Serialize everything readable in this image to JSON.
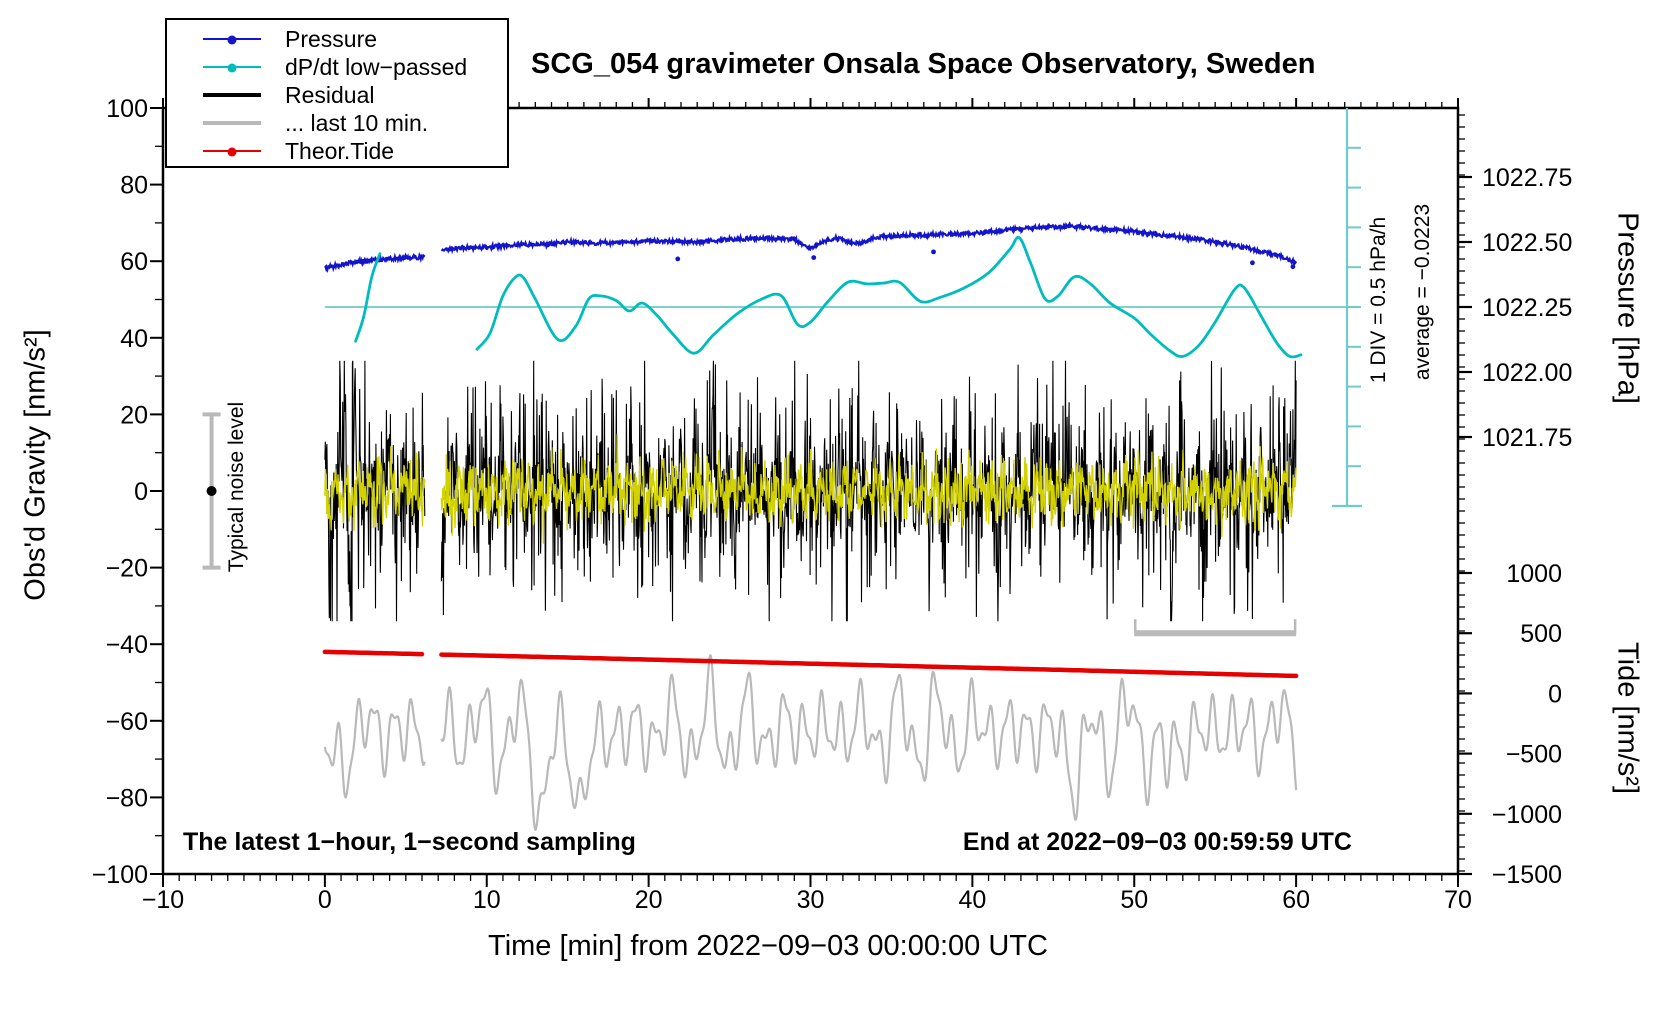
{
  "title": "SCG_054 gravimeter Onsala Space Observatory, Sweden",
  "legend": {
    "items": [
      {
        "label": "Pressure",
        "color": "#1414cc",
        "line_width": 2,
        "marker": true
      },
      {
        "label": "dP/dt low−passed",
        "color": "#00bdbd",
        "line_width": 2,
        "marker": true
      },
      {
        "label": "Residual",
        "color": "#000000",
        "line_width": 4,
        "marker": false
      },
      {
        "label": "... last 10 min.",
        "color": "#b9b9b9",
        "line_width": 4,
        "marker": false
      },
      {
        "label": "Theor.Tide",
        "color": "#e60000",
        "line_width": 2,
        "marker": true
      }
    ]
  },
  "annotations": {
    "sampling_note": "The latest 1−hour, 1−second sampling",
    "end_note": "End at 2022−09−03 00:59:59 UTC",
    "div_note": "1 DIV = 0.5 hPa/h",
    "average_note": "average = −0.0223",
    "noise_label": "Typical noise level"
  },
  "axes": {
    "x": {
      "title": "Time [min] from 2022−09−03 00:00:00 UTC",
      "min": -10,
      "max": 70,
      "major_step": 10,
      "minor_step": 1,
      "tick_values": [
        -10,
        0,
        10,
        20,
        30,
        40,
        50,
        60,
        70
      ],
      "tick_labels": [
        "−10",
        "0",
        "10",
        "20",
        "30",
        "40",
        "50",
        "60",
        "70"
      ]
    },
    "y_left": {
      "title": "Obs'd Gravity [nm/s²]",
      "min": -100,
      "max": 100,
      "major_step": 20,
      "minor_step": 10,
      "tick_values": [
        100,
        80,
        60,
        40,
        20,
        0,
        -20,
        -40,
        -60,
        -80,
        -100
      ],
      "tick_labels": [
        "100",
        "80",
        "60",
        "40",
        "20",
        "0",
        "−20",
        "−40",
        "−60",
        "−80",
        "−100"
      ]
    },
    "y_right_pressure": {
      "title": "Pressure [hPa]",
      "tick_values": [
        1022.75,
        1022.5,
        1022.25,
        1022.0,
        1021.75
      ],
      "tick_labels": [
        "1022.75",
        "1022.50",
        "1022.25",
        "1022.00",
        "1021.75"
      ]
    },
    "y_right_tide": {
      "title": "Tide [nm/s²]",
      "tick_values": [
        1000,
        500,
        0,
        -500,
        -1000,
        -1500
      ],
      "tick_labels": [
        "1000",
        "500",
        "0",
        "−500",
        "−1000",
        "−1500"
      ]
    }
  },
  "colors": {
    "pressure": "#1414cc",
    "dpdt": "#00bdbd",
    "dpdt_ruler": "#6fcaca",
    "residual": "#000000",
    "residual_overlay": "#d2d200",
    "last10": "#b9b9b9",
    "tide": "#e60000",
    "noise_bar": "#b9b9b9"
  },
  "chart_data": {
    "type": "line",
    "x_unit": "minutes",
    "time_span": [
      0,
      60
    ],
    "data_gap": [
      6.2,
      7.2
    ],
    "noise_level_marker": {
      "t": -7,
      "center_gravity": 0,
      "half_range": 20
    },
    "dpdt_ruler": {
      "divisions": 10,
      "div_value_hPa_per_h": 0.5
    },
    "series": [
      {
        "name": "Pressure",
        "axis": "pressure_hPa",
        "color": "#1414cc",
        "noise_hPa": 0.008,
        "keypoints": [
          [
            0,
            1022.4
          ],
          [
            1,
            1022.413
          ],
          [
            2,
            1022.424
          ],
          [
            3,
            1022.43
          ],
          [
            4,
            1022.436
          ],
          [
            5,
            1022.44
          ],
          [
            6.2,
            1022.442
          ],
          [
            7.2,
            1022.47
          ],
          [
            8,
            1022.476
          ],
          [
            10,
            1022.48
          ],
          [
            12,
            1022.49
          ],
          [
            14,
            1022.492
          ],
          [
            15,
            1022.5
          ],
          [
            17,
            1022.496
          ],
          [
            19,
            1022.5
          ],
          [
            21,
            1022.505
          ],
          [
            23,
            1022.5
          ],
          [
            25,
            1022.51
          ],
          [
            27,
            1022.515
          ],
          [
            29,
            1022.51
          ],
          [
            30,
            1022.472
          ],
          [
            30.6,
            1022.5
          ],
          [
            31.5,
            1022.515
          ],
          [
            33,
            1022.492
          ],
          [
            34,
            1022.52
          ],
          [
            36,
            1022.525
          ],
          [
            38,
            1022.53
          ],
          [
            40,
            1022.532
          ],
          [
            42,
            1022.545
          ],
          [
            44,
            1022.556
          ],
          [
            46,
            1022.56
          ],
          [
            47,
            1022.556
          ],
          [
            48,
            1022.55
          ],
          [
            50,
            1022.54
          ],
          [
            52,
            1022.525
          ],
          [
            54,
            1022.51
          ],
          [
            55,
            1022.5
          ],
          [
            56,
            1022.49
          ],
          [
            57,
            1022.476
          ],
          [
            58,
            1022.46
          ],
          [
            59,
            1022.448
          ],
          [
            59.5,
            1022.432
          ],
          [
            60,
            1022.42
          ]
        ],
        "outlier_points": [
          [
            21.8,
            1022.435
          ],
          [
            30.2,
            1022.44
          ],
          [
            37.6,
            1022.462
          ],
          [
            57.3,
            1022.42
          ],
          [
            59.8,
            1022.405
          ]
        ]
      },
      {
        "name": "dP/dt low−passed",
        "axis": "hPa_per_hour",
        "color": "#00bdbd",
        "average": -0.0223,
        "div_value": 0.5,
        "segments": [
          [
            [
              1.9,
              -0.43
            ],
            [
              2.4,
              -0.12
            ],
            [
              2.9,
              0.38
            ],
            [
              3.4,
              0.67
            ]
          ],
          [
            [
              9.4,
              -0.53
            ],
            [
              10.2,
              -0.33
            ],
            [
              11,
              0.14
            ],
            [
              11.8,
              0.38
            ],
            [
              12.3,
              0.36
            ],
            [
              13,
              0.1
            ],
            [
              14.4,
              -0.41
            ],
            [
              15.5,
              -0.24
            ],
            [
              16.3,
              0.1
            ],
            [
              17,
              0.14
            ],
            [
              18,
              0.08
            ],
            [
              18.8,
              -0.05
            ],
            [
              19.6,
              0.05
            ],
            [
              20.5,
              -0.1
            ],
            [
              21.5,
              -0.34
            ],
            [
              22.8,
              -0.58
            ],
            [
              24,
              -0.35
            ],
            [
              25.5,
              -0.08
            ],
            [
              27,
              0.1
            ],
            [
              28.2,
              0.14
            ],
            [
              29.2,
              -0.22
            ],
            [
              30,
              -0.19
            ],
            [
              31,
              0.05
            ],
            [
              32.3,
              0.31
            ],
            [
              33.5,
              0.29
            ],
            [
              34.5,
              0.3
            ],
            [
              35.5,
              0.31
            ],
            [
              36.8,
              0.07
            ],
            [
              38,
              0.12
            ],
            [
              39.5,
              0.24
            ],
            [
              41,
              0.43
            ],
            [
              42.3,
              0.72
            ],
            [
              42.9,
              0.87
            ],
            [
              43.6,
              0.55
            ],
            [
              44.5,
              0.1
            ],
            [
              45.3,
              0.14
            ],
            [
              46.3,
              0.38
            ],
            [
              47.3,
              0.29
            ],
            [
              48.5,
              0.05
            ],
            [
              50,
              -0.14
            ],
            [
              51,
              -0.34
            ],
            [
              52.2,
              -0.55
            ],
            [
              53,
              -0.62
            ],
            [
              54,
              -0.48
            ],
            [
              55,
              -0.19
            ],
            [
              56.2,
              0.22
            ],
            [
              56.8,
              0.24
            ],
            [
              57.8,
              -0.1
            ],
            [
              58.8,
              -0.45
            ],
            [
              59.6,
              -0.62
            ],
            [
              60.3,
              -0.6
            ]
          ]
        ]
      },
      {
        "name": "Residual",
        "axis": "gravity_nm_s2",
        "color": "#000000",
        "mean": 0,
        "typical_amplitude": 12,
        "spikes": [
          [
            1.25,
            28
          ],
          [
            1.55,
            -33
          ],
          [
            1.85,
            24
          ],
          [
            24.0,
            27
          ],
          [
            41.6,
            -23
          ],
          [
            52.3,
            -29
          ]
        ]
      },
      {
        "name": "Residual low−passed overlay",
        "axis": "gravity_nm_s2",
        "color": "#d2d200",
        "mean": 0,
        "typical_amplitude": 5
      },
      {
        "name": "... last 10 min.",
        "axis": "tide_nm_s2",
        "color": "#b9b9b9",
        "mean": -300,
        "oscillation_amplitude": 420,
        "deep_dips": [
          [
            0.4,
            -450
          ],
          [
            13.4,
            -520
          ],
          [
            15.8,
            -600
          ],
          [
            46.5,
            -420
          ],
          [
            52.0,
            -380
          ]
        ],
        "window_bar": {
          "t0": 50,
          "t1": 60,
          "tide_level": 500
        }
      },
      {
        "name": "Theor.Tide",
        "axis": "tide_nm_s2",
        "color": "#e60000",
        "keypoints": [
          [
            0,
            345
          ],
          [
            15,
            298
          ],
          [
            30,
            247
          ],
          [
            45,
            197
          ],
          [
            60,
            145
          ]
        ]
      }
    ]
  }
}
